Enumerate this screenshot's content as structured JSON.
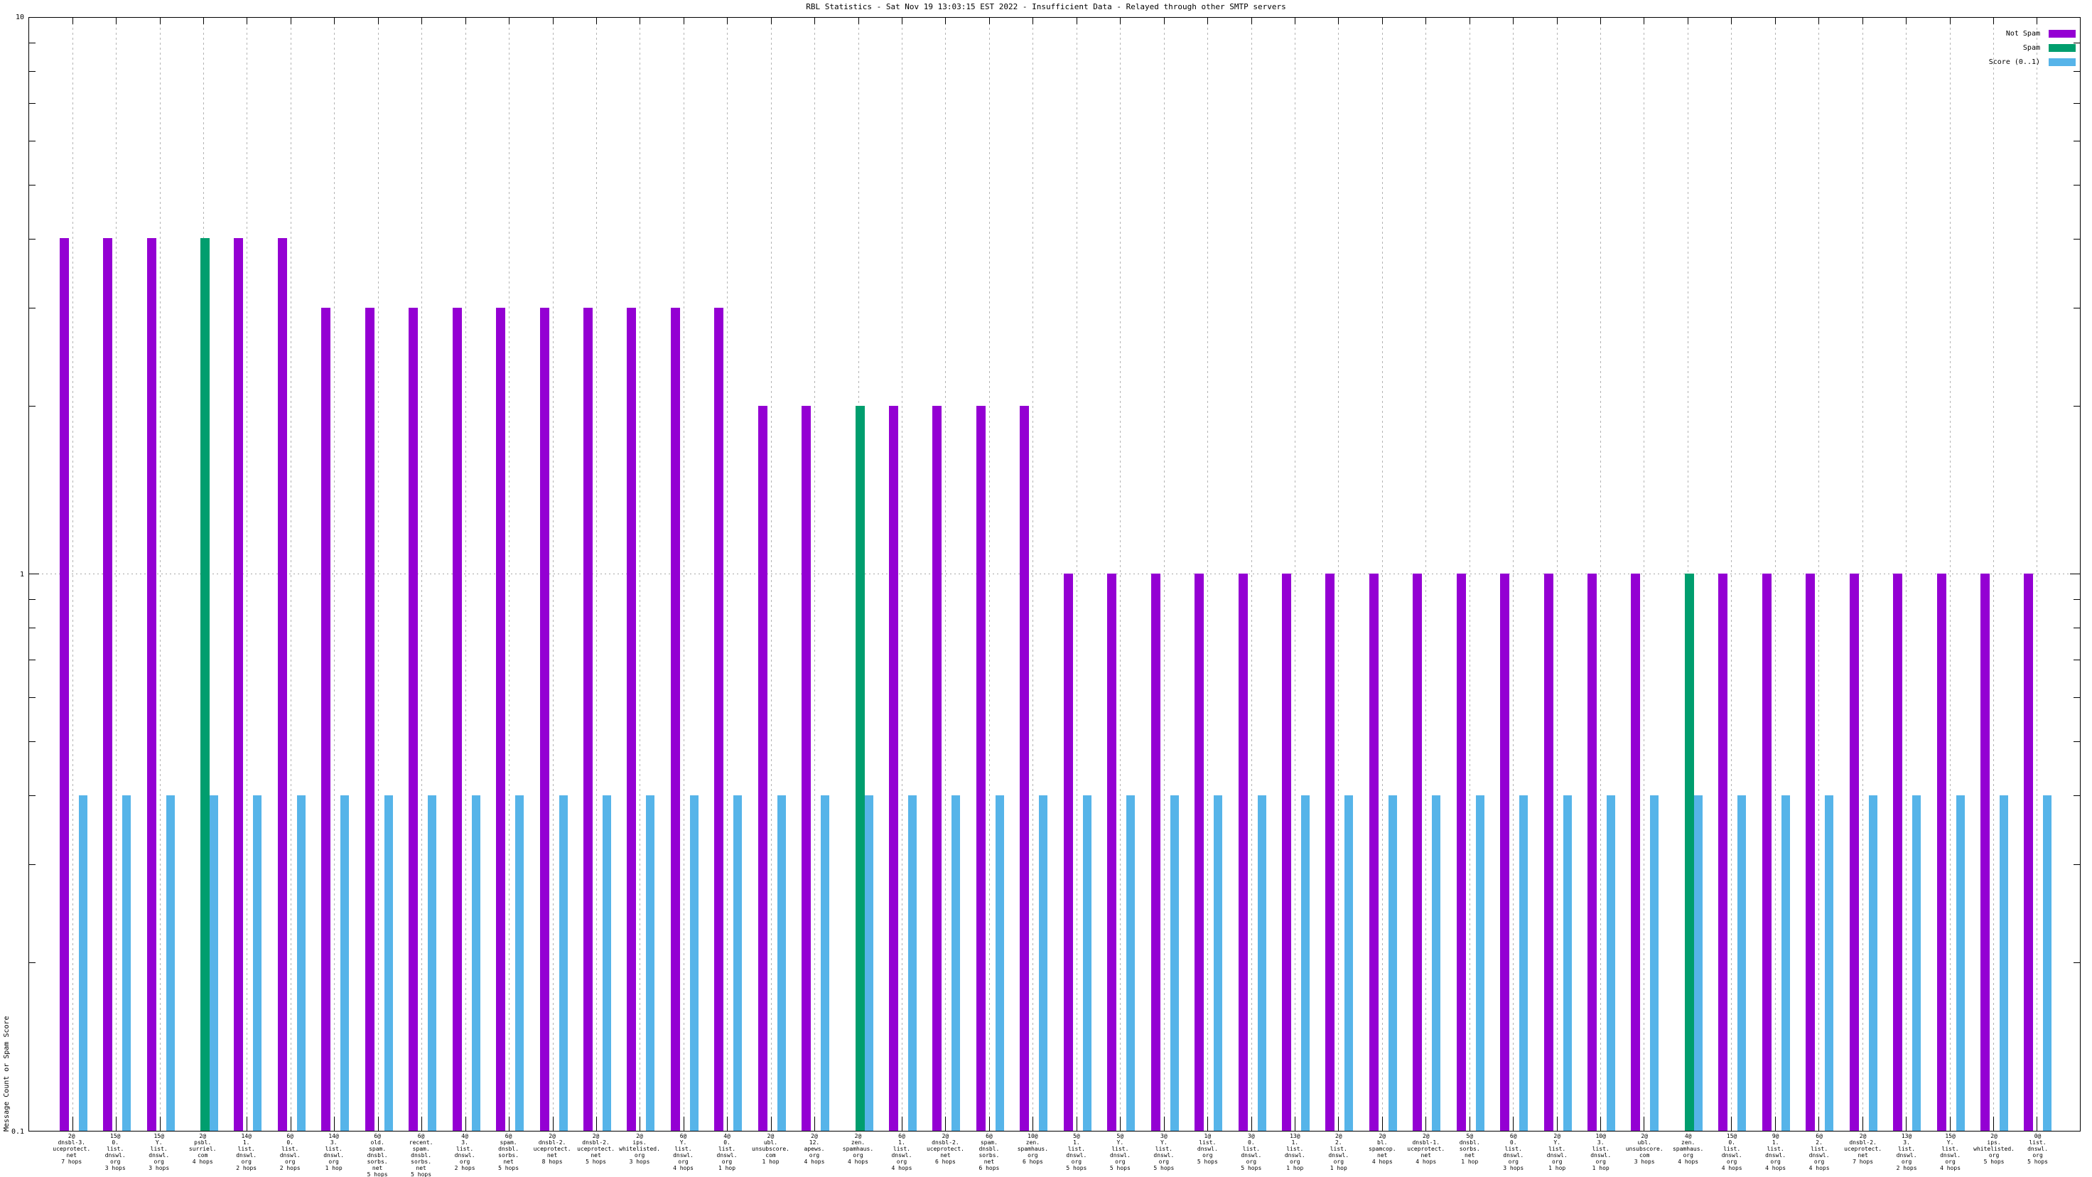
{
  "title": "RBL Statistics - Sat Nov 19 13:03:15 EST 2022 - Insufficient Data - Relayed through other SMTP servers",
  "y_axis": {
    "label": "Message Count or Spam Score",
    "ticks": [
      "10",
      "1",
      "0.1"
    ]
  },
  "legend": [
    {
      "label": "Not Spam",
      "color_key": "not_spam"
    },
    {
      "label": "Spam",
      "color_key": "spam"
    },
    {
      "label": "Score (0..1)",
      "color_key": "score"
    }
  ],
  "colors": {
    "not_spam": "#9400D3",
    "spam": "#009E6E",
    "score": "#56B4E9",
    "grid": "#b4b4b4",
    "axis": "#000000"
  },
  "chart_data": {
    "type": "bar",
    "y_scale": "log",
    "ylim": [
      0.1,
      10
    ],
    "y_ticks": [
      10,
      1,
      0.1
    ],
    "grid": true,
    "legend_position": "top-right",
    "title": "RBL Statistics - Sat Nov 19 13:03:15 EST 2022 - Insufficient Data - Relayed through other SMTP servers",
    "ylabel": "Message Count or Spam Score",
    "series_names": [
      "Not Spam",
      "Spam",
      "Score (0..1)"
    ],
    "score_value": 0.4,
    "groups": [
      {
        "lines": [
          "2@",
          "dnsbl-3.",
          "uceprotect.",
          "net",
          "7 hops"
        ],
        "series": "not_spam",
        "count": 4,
        "score": 0.4
      },
      {
        "lines": [
          "15@",
          "0.",
          "list.",
          "dnswl.",
          "org",
          "3 hops"
        ],
        "series": "not_spam",
        "count": 4,
        "score": 0.4
      },
      {
        "lines": [
          "15@",
          "Y.",
          "list.",
          "dnswl.",
          "org",
          "3 hops"
        ],
        "series": "not_spam",
        "count": 4,
        "score": 0.4
      },
      {
        "lines": [
          "2@",
          "psbl.",
          "surriel.",
          "com",
          "4 hops"
        ],
        "series": "spam",
        "count": 4,
        "score": 0.4
      },
      {
        "lines": [
          "14@",
          "1.",
          "list.",
          "dnswl.",
          "org",
          "2 hops"
        ],
        "series": "not_spam",
        "count": 4,
        "score": 0.4
      },
      {
        "lines": [
          "6@",
          "0.",
          "list.",
          "dnswl.",
          "org",
          "2 hops"
        ],
        "series": "not_spam",
        "count": 4,
        "score": 0.4
      },
      {
        "lines": [
          "14@",
          "3.",
          "list.",
          "dnswl.",
          "org",
          "1 hop"
        ],
        "series": "not_spam",
        "count": 3,
        "score": 0.4
      },
      {
        "lines": [
          "6@",
          "old.",
          "spam.",
          "dnsbl.",
          "sorbs.",
          "net",
          "5 hops"
        ],
        "series": "not_spam",
        "count": 3,
        "score": 0.4
      },
      {
        "lines": [
          "6@",
          "recent.",
          "spam.",
          "dnsbl.",
          "sorbs.",
          "net",
          "5 hops"
        ],
        "series": "not_spam",
        "count": 3,
        "score": 0.4
      },
      {
        "lines": [
          "4@",
          "3.",
          "list.",
          "dnswl.",
          "org",
          "2 hops"
        ],
        "series": "not_spam",
        "count": 3,
        "score": 0.4
      },
      {
        "lines": [
          "6@",
          "spam.",
          "dnsbl.",
          "sorbs.",
          "net",
          "5 hops"
        ],
        "series": "not_spam",
        "count": 3,
        "score": 0.4
      },
      {
        "lines": [
          "2@",
          "dnsbl-2.",
          "uceprotect.",
          "net",
          "8 hops"
        ],
        "series": "not_spam",
        "count": 3,
        "score": 0.4
      },
      {
        "lines": [
          "2@",
          "dnsbl-2.",
          "uceprotect.",
          "net",
          "5 hops"
        ],
        "series": "not_spam",
        "count": 3,
        "score": 0.4
      },
      {
        "lines": [
          "2@",
          "ips.",
          "whitelisted.",
          "org",
          "3 hops"
        ],
        "series": "not_spam",
        "count": 3,
        "score": 0.4
      },
      {
        "lines": [
          "6@",
          "Y.",
          "list.",
          "dnswl.",
          "org",
          "4 hops"
        ],
        "series": "not_spam",
        "count": 3,
        "score": 0.4
      },
      {
        "lines": [
          "4@",
          "0.",
          "list.",
          "dnswl.",
          "org",
          "1 hop"
        ],
        "series": "not_spam",
        "count": 3,
        "score": 0.4
      },
      {
        "lines": [
          "2@",
          "ubl.",
          "unsubscore.",
          "com",
          "1 hop"
        ],
        "series": "not_spam",
        "count": 2,
        "score": 0.4
      },
      {
        "lines": [
          "2@",
          "12.",
          "apews.",
          "org",
          "4 hops"
        ],
        "series": "not_spam",
        "count": 2,
        "score": 0.4
      },
      {
        "lines": [
          "2@",
          "zen.",
          "spamhaus.",
          "org",
          "4 hops"
        ],
        "series": "spam",
        "count": 2,
        "score": 0.4
      },
      {
        "lines": [
          "6@",
          "1.",
          "list.",
          "dnswl.",
          "org",
          "4 hops"
        ],
        "series": "not_spam",
        "count": 2,
        "score": 0.4
      },
      {
        "lines": [
          "2@",
          "dnsbl-2.",
          "uceprotect.",
          "net",
          "6 hops"
        ],
        "series": "not_spam",
        "count": 2,
        "score": 0.4
      },
      {
        "lines": [
          "6@",
          "spam.",
          "dnsbl.",
          "sorbs.",
          "net",
          "6 hops"
        ],
        "series": "not_spam",
        "count": 2,
        "score": 0.4
      },
      {
        "lines": [
          "10@",
          "zen.",
          "spamhaus.",
          "org",
          "6 hops"
        ],
        "series": "not_spam",
        "count": 2,
        "score": 0.4
      },
      {
        "lines": [
          "5@",
          "1.",
          "list.",
          "dnswl.",
          "org",
          "5 hops"
        ],
        "series": "not_spam",
        "count": 1,
        "score": 0.4
      },
      {
        "lines": [
          "5@",
          "Y.",
          "list.",
          "dnswl.",
          "org",
          "5 hops"
        ],
        "series": "not_spam",
        "count": 1,
        "score": 0.4
      },
      {
        "lines": [
          "3@",
          "Y.",
          "list.",
          "dnswl.",
          "org",
          "5 hops"
        ],
        "series": "not_spam",
        "count": 1,
        "score": 0.4
      },
      {
        "lines": [
          "1@",
          "list.",
          "dnswl.",
          "org",
          "5 hops"
        ],
        "series": "not_spam",
        "count": 1,
        "score": 0.4
      },
      {
        "lines": [
          "3@",
          "0.",
          "list.",
          "dnswl.",
          "org",
          "5 hops"
        ],
        "series": "not_spam",
        "count": 1,
        "score": 0.4
      },
      {
        "lines": [
          "13@",
          "1.",
          "list.",
          "dnswl.",
          "org",
          "1 hop"
        ],
        "series": "not_spam",
        "count": 1,
        "score": 0.4
      },
      {
        "lines": [
          "2@",
          "2.",
          "list.",
          "dnswl.",
          "org",
          "1 hop"
        ],
        "series": "not_spam",
        "count": 1,
        "score": 0.4
      },
      {
        "lines": [
          "2@",
          "bl.",
          "spamcop.",
          "net",
          "4 hops"
        ],
        "series": "not_spam",
        "count": 1,
        "score": 0.4
      },
      {
        "lines": [
          "2@",
          "dnsbl-1.",
          "uceprotect.",
          "net",
          "4 hops"
        ],
        "series": "not_spam",
        "count": 1,
        "score": 0.4
      },
      {
        "lines": [
          "5@",
          "dnsbl.",
          "sorbs.",
          "net",
          "1 hop"
        ],
        "series": "not_spam",
        "count": 1,
        "score": 0.4
      },
      {
        "lines": [
          "6@",
          "0.",
          "list.",
          "dnswl.",
          "org",
          "3 hops"
        ],
        "series": "not_spam",
        "count": 1,
        "score": 0.4
      },
      {
        "lines": [
          "2@",
          "Y.",
          "list.",
          "dnswl.",
          "org",
          "1 hop"
        ],
        "series": "not_spam",
        "count": 1,
        "score": 0.4
      },
      {
        "lines": [
          "10@",
          "3.",
          "list.",
          "dnswl.",
          "org",
          "1 hop"
        ],
        "series": "not_spam",
        "count": 1,
        "score": 0.4
      },
      {
        "lines": [
          "2@",
          "ubl.",
          "unsubscore.",
          "com",
          "3 hops"
        ],
        "series": "not_spam",
        "count": 1,
        "score": 0.4
      },
      {
        "lines": [
          "4@",
          "zen.",
          "spamhaus.",
          "org",
          "4 hops"
        ],
        "series": "spam",
        "count": 1,
        "score": 0.4
      },
      {
        "lines": [
          "15@",
          "0.",
          "list.",
          "dnswl.",
          "org",
          "4 hops"
        ],
        "series": "not_spam",
        "count": 1,
        "score": 0.4
      },
      {
        "lines": [
          "9@",
          "1.",
          "list.",
          "dnswl.",
          "org",
          "4 hops"
        ],
        "series": "not_spam",
        "count": 1,
        "score": 0.4
      },
      {
        "lines": [
          "6@",
          "2.",
          "list.",
          "dnswl.",
          "org",
          "4 hops"
        ],
        "series": "not_spam",
        "count": 1,
        "score": 0.4
      },
      {
        "lines": [
          "2@",
          "dnsbl-2.",
          "uceprotect.",
          "net",
          "7 hops"
        ],
        "series": "not_spam",
        "count": 1,
        "score": 0.4
      },
      {
        "lines": [
          "13@",
          "3.",
          "list.",
          "dnswl.",
          "org",
          "2 hops"
        ],
        "series": "not_spam",
        "count": 1,
        "score": 0.4
      },
      {
        "lines": [
          "15@",
          "Y.",
          "list.",
          "dnswl.",
          "org",
          "4 hops"
        ],
        "series": "not_spam",
        "count": 1,
        "score": 0.4
      },
      {
        "lines": [
          "2@",
          "ips.",
          "whitelisted.",
          "org",
          "5 hops"
        ],
        "series": "not_spam",
        "count": 1,
        "score": 0.4
      },
      {
        "lines": [
          "0@",
          "list.",
          "dnswl.",
          "org",
          "5 hops"
        ],
        "series": "not_spam",
        "count": 1,
        "score": 0.4
      }
    ]
  }
}
